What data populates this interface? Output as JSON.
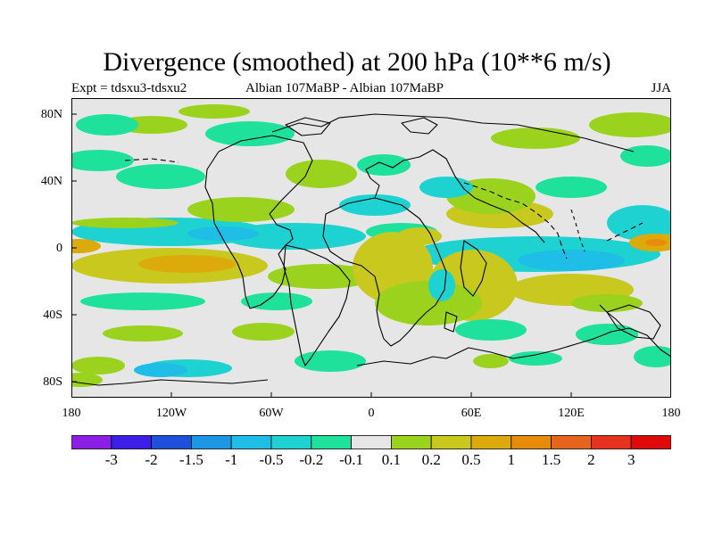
{
  "title": "Divergence (smoothed) at 200 hPa (10**6 m/s)",
  "subtitle": {
    "left": "Expt = tdsxu3-tdsxu2",
    "center": "Albian   107MaBP - Albian   107MaBP",
    "right": "JJA"
  },
  "map": {
    "y_ticks": [
      "80N",
      "40N",
      "0",
      "40S",
      "80S"
    ],
    "x_ticks": [
      "180",
      "120W",
      "60W",
      "0",
      "60E",
      "120E",
      "180"
    ],
    "background_color": "#e6e6e6",
    "coastline_color": "#000000"
  },
  "colorbar": {
    "colors": [
      "#8c1ee6",
      "#3c1ee6",
      "#1e50dc",
      "#1e96e6",
      "#1ebee6",
      "#1ed2d2",
      "#1ee19b",
      "#e6e6e6",
      "#9bd21e",
      "#c8c81e",
      "#dcaa0a",
      "#e68c0a",
      "#e6641e",
      "#e6321e",
      "#e10a0a"
    ],
    "labels": [
      "-3",
      "-2",
      "-1.5",
      "-1",
      "-0.5",
      "-0.2",
      "-0.1",
      "0.1",
      "0.2",
      "0.5",
      "1",
      "1.5",
      "2",
      "3"
    ]
  }
}
